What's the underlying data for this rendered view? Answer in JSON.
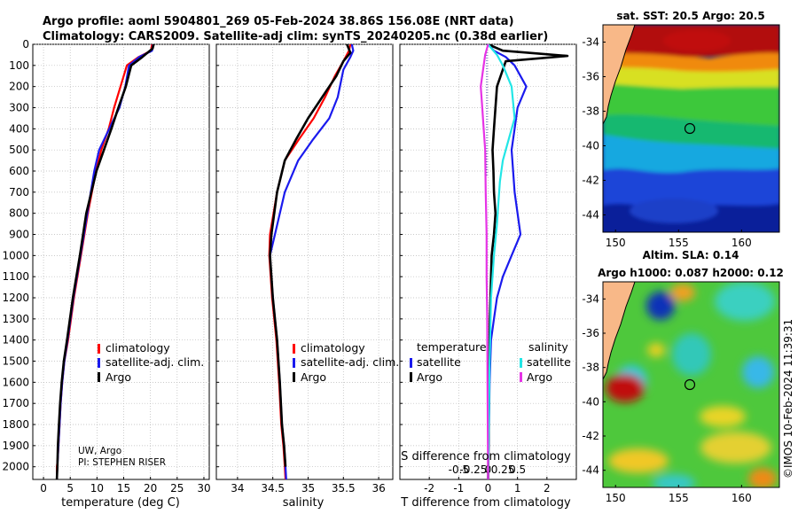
{
  "title_line1": "Argo profile: aoml 5904801_269 05-Feb-2024 38.86S 156.08E (NRT data)",
  "title_line2": "Climatology: CARS2009. Satellite-adj clim: synTS_20240205.nc (0.38d earlier)",
  "attribution_line1": "UW, Argo",
  "attribution_line2": "PI: STEPHEN RISER",
  "copyright": "©IMOS 10-Feb-2024 11:39:31",
  "colors": {
    "red": "#ff0000",
    "blue": "#1a1aee",
    "black": "#000000",
    "cyan": "#22e6e6",
    "magenta": "#e633e6",
    "grid": "#b8b8b8"
  },
  "chart_data": [
    {
      "type": "line",
      "id": "temperature",
      "xlabel": "temperature (deg C)",
      "ylabel": "",
      "xlim": [
        -2,
        31
      ],
      "ylim": [
        2060,
        0
      ],
      "xticks": [
        0,
        5,
        10,
        15,
        20,
        25,
        30
      ],
      "xtick_labels": [
        "0",
        "5",
        "10",
        "15",
        "20",
        "25",
        "30"
      ],
      "yticks": [
        0,
        100,
        200,
        300,
        400,
        500,
        600,
        700,
        800,
        900,
        1000,
        1100,
        1200,
        1300,
        1400,
        1500,
        1600,
        1700,
        1800,
        1900,
        2000
      ],
      "ytick_labels": [
        "0",
        "100",
        "200",
        "300",
        "400",
        "500",
        "600",
        "700",
        "800",
        "900",
        "1000",
        "1100",
        "1200",
        "1300",
        "1400",
        "1500",
        "1600",
        "1700",
        "1800",
        "1900",
        "2000"
      ],
      "legend": [
        "climatology",
        "satellite-adj. clim.",
        "Argo"
      ],
      "series": [
        {
          "name": "climatology",
          "color": "#ff0000",
          "x": [
            20.3,
            20.1,
            17.8,
            15.6,
            14.4,
            13.2,
            12.2,
            10.8,
            9.8,
            8.3,
            7.0,
            5.7,
            4.6,
            3.9,
            3.5,
            3.2,
            3.0,
            2.8,
            2.7,
            2.6,
            2.5,
            2.5
          ],
          "y": [
            0,
            30,
            60,
            100,
            200,
            300,
            400,
            500,
            600,
            800,
            1000,
            1200,
            1400,
            1500,
            1600,
            1700,
            1800,
            1900,
            1950,
            1980,
            2000,
            2060
          ]
        },
        {
          "name": "satellite-adj. clim.",
          "color": "#1a1aee",
          "x": [
            20.5,
            20.3,
            17.9,
            16.0,
            15.3,
            14.2,
            12.3,
            10.4,
            9.5,
            8.2,
            6.9,
            5.6,
            4.5,
            3.9,
            3.5,
            3.2,
            3.0,
            2.8,
            2.6,
            2.5
          ],
          "y": [
            0,
            30,
            60,
            100,
            200,
            300,
            400,
            500,
            600,
            800,
            1000,
            1200,
            1400,
            1500,
            1600,
            1700,
            1800,
            1900,
            2000,
            2060
          ]
        },
        {
          "name": "Argo",
          "color": "#000000",
          "x": [
            20.6,
            20.4,
            18.5,
            16.4,
            15.4,
            14.0,
            12.7,
            11.3,
            9.9,
            8.0,
            6.8,
            5.5,
            4.4,
            3.8,
            3.4,
            3.1,
            2.9,
            2.7,
            2.6,
            2.5
          ],
          "y": [
            0,
            20,
            60,
            100,
            200,
            300,
            400,
            500,
            600,
            800,
            1000,
            1200,
            1400,
            1500,
            1600,
            1700,
            1800,
            1900,
            2000,
            2060
          ]
        }
      ]
    },
    {
      "type": "line",
      "id": "salinity",
      "xlabel": "salinity",
      "ylabel": "",
      "xlim": [
        33.7,
        36.2
      ],
      "ylim": [
        2060,
        0
      ],
      "xticks": [
        34,
        34.5,
        35,
        35.5,
        36
      ],
      "xtick_labels": [
        "34",
        "34.5",
        "35",
        "35.5",
        "36"
      ],
      "legend": [
        "climatology",
        "satellite-adj. clim.",
        "Argo"
      ],
      "series": [
        {
          "name": "climatology",
          "color": "#ff0000",
          "x": [
            35.6,
            35.58,
            35.5,
            35.38,
            35.24,
            35.08,
            34.87,
            34.67,
            34.56,
            34.46,
            34.45,
            34.49,
            34.55,
            34.59,
            34.62,
            34.65,
            34.67,
            34.68
          ],
          "y": [
            0,
            30,
            80,
            150,
            250,
            350,
            450,
            550,
            700,
            900,
            1000,
            1200,
            1400,
            1600,
            1800,
            1900,
            2000,
            2060
          ]
        },
        {
          "name": "satellite-adj. clim.",
          "color": "#1a1aee",
          "x": [
            35.62,
            35.64,
            35.6,
            35.5,
            35.42,
            35.3,
            35.07,
            34.86,
            34.67,
            34.53,
            34.46,
            34.5,
            34.56,
            34.6,
            34.63,
            34.66,
            34.68,
            34.69
          ],
          "y": [
            0,
            30,
            60,
            120,
            250,
            350,
            450,
            550,
            700,
            900,
            1000,
            1200,
            1400,
            1600,
            1800,
            1900,
            2000,
            2060
          ]
        },
        {
          "name": "Argo",
          "color": "#000000",
          "x": [
            35.55,
            35.6,
            35.5,
            35.4,
            35.2,
            35.0,
            34.83,
            34.67,
            34.56,
            34.48,
            34.46,
            34.5,
            34.56,
            34.6,
            34.63,
            34.66,
            34.68
          ],
          "y": [
            0,
            40,
            80,
            150,
            250,
            350,
            450,
            550,
            700,
            900,
            1000,
            1200,
            1400,
            1600,
            1800,
            1900,
            2000
          ]
        }
      ]
    },
    {
      "type": "line",
      "id": "difference",
      "xlabel": "T difference from climatology",
      "x2label": "S difference from climatology",
      "xlim": [
        -3,
        3
      ],
      "ylim": [
        2060,
        0
      ],
      "xticks": [
        -2,
        -1,
        0,
        1,
        2
      ],
      "xtick_labels": [
        "-2",
        "-1",
        "0",
        "1",
        "2"
      ],
      "x2ticks": [
        -1.0,
        -0.5,
        0,
        0.5,
        1.0
      ],
      "x2tick_labels": [
        "-0.5",
        "-0.25",
        "0",
        "0.25",
        "0.5"
      ],
      "legend_temperature": [
        "temperature",
        "satellite",
        "Argo"
      ],
      "legend_salinity": [
        "salinity",
        "satellite",
        "Argo"
      ],
      "series": [
        {
          "name": "temperature satellite",
          "color": "#1a1aee",
          "x": [
            0.0,
            0.2,
            0.6,
            0.9,
            1.3,
            1.0,
            0.9,
            0.8,
            0.85,
            0.9,
            1.0,
            1.1,
            0.8,
            0.5,
            0.3,
            0.2,
            0.1,
            0.05,
            0.03,
            0.0
          ],
          "y": [
            0,
            30,
            60,
            100,
            200,
            300,
            400,
            500,
            600,
            700,
            800,
            900,
            1000,
            1100,
            1200,
            1300,
            1400,
            1600,
            1800,
            2060
          ]
        },
        {
          "name": "temperature Argo",
          "color": "#000000",
          "x": [
            0.0,
            0.5,
            2.7,
            0.6,
            0.3,
            0.25,
            0.2,
            0.15,
            0.18,
            0.2,
            0.25,
            0.2,
            0.12,
            0.1,
            0.08,
            0.06,
            0.05,
            0.03,
            0.02,
            0.0
          ],
          "y": [
            0,
            30,
            55,
            80,
            200,
            300,
            400,
            500,
            600,
            700,
            800,
            900,
            1000,
            1100,
            1200,
            1300,
            1400,
            1600,
            1800,
            2060
          ]
        },
        {
          "name": "salinity satellite",
          "color": "#22e6e6",
          "x": [
            0.0,
            0.3,
            0.5,
            0.8,
            0.9,
            0.7,
            0.5,
            0.4,
            0.35,
            0.3,
            0.2,
            0.1,
            0.05,
            0.0
          ],
          "y": [
            0,
            50,
            100,
            200,
            350,
            450,
            550,
            650,
            750,
            850,
            1000,
            1200,
            1500,
            2060
          ]
        },
        {
          "name": "salinity Argo",
          "color": "#e633e6",
          "x": [
            0.0,
            -0.1,
            -0.15,
            -0.25,
            -0.2,
            -0.15,
            -0.1,
            -0.08,
            -0.05,
            -0.05,
            -0.03,
            -0.02,
            0.0
          ],
          "y": [
            0,
            50,
            100,
            200,
            300,
            400,
            500,
            700,
            900,
            1100,
            1300,
            1600,
            2060
          ]
        }
      ]
    },
    {
      "type": "heatmap",
      "id": "sst_map",
      "title": "sat. SST: 20.5 Argo: 20.5",
      "xlim": [
        149,
        163
      ],
      "ylim": [
        -45,
        -33
      ],
      "xticks": [
        150,
        155,
        160
      ],
      "xtick_labels": [
        "150",
        "155",
        "160"
      ],
      "yticks": [
        -34,
        -36,
        -38,
        -40,
        -42,
        -44
      ],
      "ytick_labels": [
        "-34",
        "-36",
        "-38",
        "-40",
        "-42",
        "-44"
      ],
      "marker": {
        "lon": 156.08,
        "lat": -38.86
      }
    },
    {
      "type": "heatmap",
      "id": "sla_map",
      "title_line1": "Altim. SLA: 0.14",
      "title_line2": "Argo h1000: 0.087 h2000: 0.12",
      "xlim": [
        149,
        163
      ],
      "ylim": [
        -45,
        -33
      ],
      "xticks": [
        150,
        155,
        160
      ],
      "xtick_labels": [
        "150",
        "155",
        "160"
      ],
      "yticks": [
        -34,
        -36,
        -38,
        -40,
        -42,
        -44
      ],
      "ytick_labels": [
        "-34",
        "-36",
        "-38",
        "-40",
        "-42",
        "-44"
      ],
      "marker": {
        "lon": 156.08,
        "lat": -38.86
      }
    }
  ]
}
